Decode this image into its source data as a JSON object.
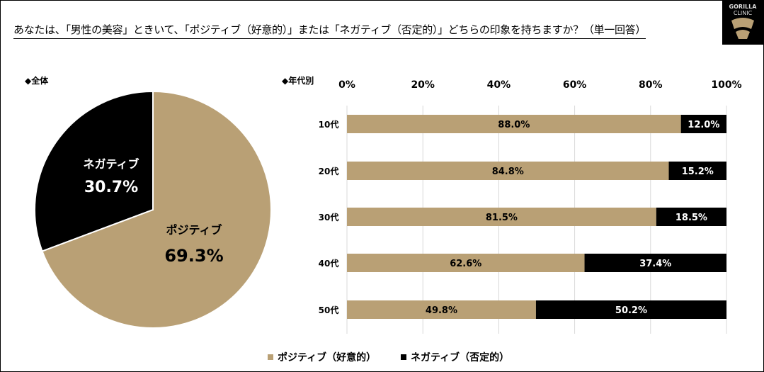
{
  "title": "あなたは、「男性の美容」ときいて、「ポジティブ（好意的）」または「ネガティブ（否定的）」どちらの印象を持ちますか？（単一回答）",
  "logo": {
    "line1": "GORILLA",
    "line2": "CLINIC"
  },
  "colors": {
    "positive": "#b9a075",
    "negative": "#000000"
  },
  "chart_data": [
    {
      "type": "pie",
      "title": "◆全体",
      "slices": [
        {
          "name": "ポジティブ",
          "value": 69.3,
          "label": "69.3%"
        },
        {
          "name": "ネガティブ",
          "value": 30.7,
          "label": "30.7%"
        }
      ]
    },
    {
      "type": "bar",
      "orientation": "horizontal",
      "stacked": true,
      "title": "◆年代別",
      "categories": [
        "10代",
        "20代",
        "30代",
        "40代",
        "50代"
      ],
      "series": [
        {
          "name": "ポジティブ（好意的）",
          "values": [
            88.0,
            84.8,
            81.5,
            62.6,
            49.8
          ]
        },
        {
          "name": "ネガティブ（否定的）",
          "values": [
            12.0,
            15.2,
            18.5,
            37.4,
            50.2
          ]
        }
      ],
      "xlim": [
        0,
        100
      ],
      "xticks": [
        "0%",
        "20%",
        "40%",
        "60%",
        "80%",
        "100%"
      ],
      "grid": true,
      "legend": "bottom"
    }
  ]
}
